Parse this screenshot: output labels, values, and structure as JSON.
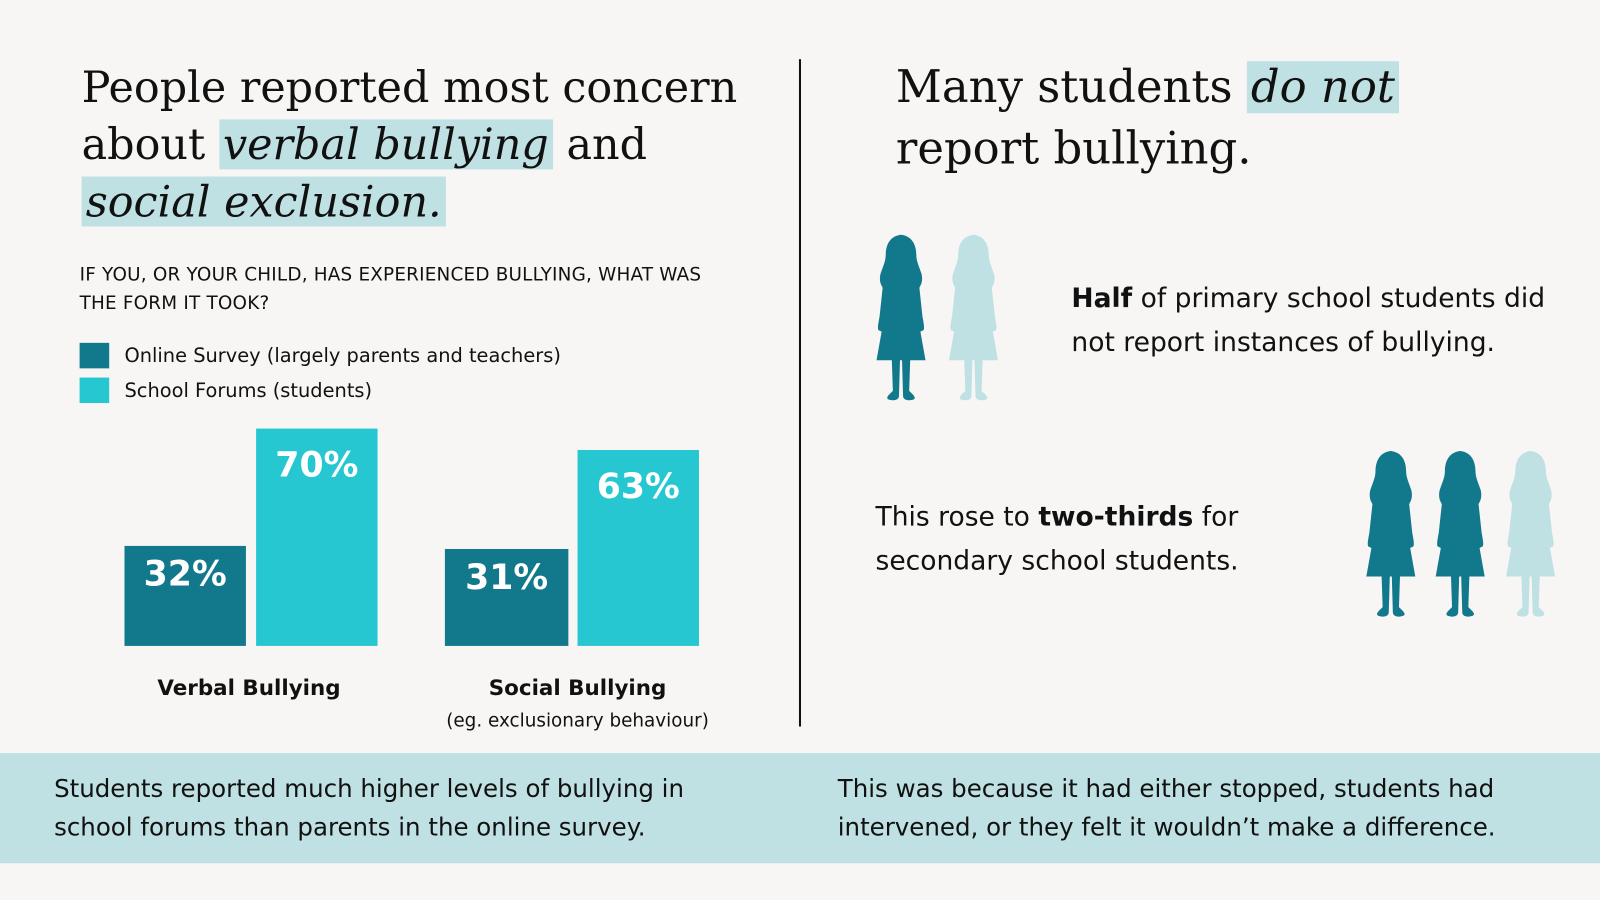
{
  "left": {
    "headline": {
      "pre": "People reported most concern about ",
      "hl1": "verbal bullying",
      "mid": " and ",
      "hl2": "social exclusion."
    },
    "question": "IF YOU, OR YOUR CHILD, HAS EXPERIENCED BULLYING, WHAT WAS THE FORM IT TOOK?"
  },
  "chart_data": {
    "type": "bar",
    "title": "IF YOU, OR YOUR CHILD, HAS EXPERIENCED BULLYING, WHAT WAS THE FORM IT TOOK?",
    "categories": [
      "Verbal Bullying",
      "Social Bullying"
    ],
    "category_notes": [
      "",
      "(eg. exclusionary behaviour)"
    ],
    "series": [
      {
        "name": "Online Survey (largely parents and teachers)",
        "values": [
          32,
          31
        ],
        "labels": [
          "32%",
          "31%"
        ],
        "color": "#12788C"
      },
      {
        "name": "School Forums (students)",
        "values": [
          70,
          63
        ],
        "labels": [
          "70%",
          "63%"
        ],
        "color": "#26C7D0"
      }
    ],
    "legend": "top-left",
    "unit": "%"
  },
  "right": {
    "headline": {
      "pre": "Many students ",
      "hl": "do not",
      "post": " report bullying."
    },
    "stat1": {
      "bold": "Half",
      "rest": " of primary school students did not report instances of bullying.",
      "reported_fraction": 0.5
    },
    "stat2": {
      "pre": "This rose to ",
      "bold": "two-thirds",
      "post": " for secondary school students.",
      "reported_fraction": 0.6667
    }
  },
  "footer": {
    "left": "Students reported much higher levels of bullying in school forums than parents in the online survey.",
    "right": "This was because it had either stopped, students had intervened, or they felt it wouldn’t make a difference."
  },
  "colors": {
    "dark": "#12788C",
    "bright": "#26C7D0",
    "light": "#BFE1E3",
    "background": "#F7F6F4"
  }
}
